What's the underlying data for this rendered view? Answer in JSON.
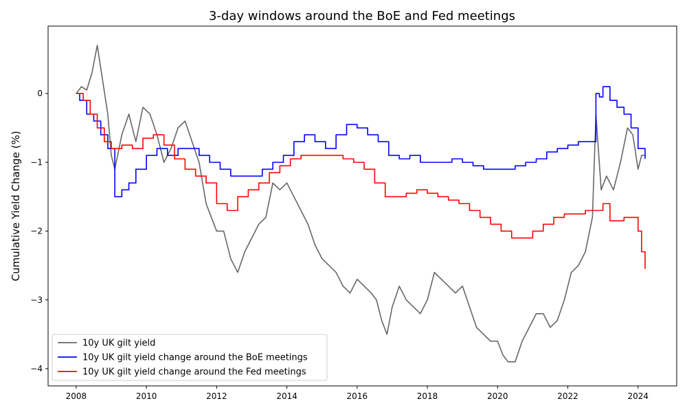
{
  "chart_data": {
    "type": "line",
    "title": "3-day windows around the BoE and Fed meetings",
    "xlabel": "",
    "ylabel": "Cumulative Yield Change (%)",
    "xlim": [
      2007.2,
      2025.1
    ],
    "ylim": [
      -4.25,
      0.98
    ],
    "x_ticks": [
      2008,
      2010,
      2012,
      2014,
      2016,
      2018,
      2020,
      2022,
      2024
    ],
    "y_ticks": [
      0,
      -1,
      -2,
      -3,
      -4
    ],
    "y_tick_labels": [
      "0",
      "−1",
      "−2",
      "−3",
      "−4"
    ],
    "legend_position": "lower-left",
    "grid": false,
    "series": [
      {
        "name": "10y UK gilt yield",
        "color": "#666666",
        "style": "line",
        "x": [
          2008.0,
          2008.15,
          2008.3,
          2008.45,
          2008.6,
          2008.75,
          2008.9,
          2009.0,
          2009.1,
          2009.3,
          2009.5,
          2009.7,
          2009.9,
          2010.1,
          2010.3,
          2010.5,
          2010.7,
          2010.9,
          2011.1,
          2011.3,
          2011.5,
          2011.7,
          2011.85,
          2012.0,
          2012.2,
          2012.4,
          2012.6,
          2012.8,
          2013.0,
          2013.2,
          2013.4,
          2013.6,
          2013.8,
          2014.0,
          2014.2,
          2014.4,
          2014.6,
          2014.8,
          2015.0,
          2015.2,
          2015.4,
          2015.6,
          2015.8,
          2016.0,
          2016.2,
          2016.4,
          2016.55,
          2016.7,
          2016.85,
          2017.0,
          2017.2,
          2017.4,
          2017.6,
          2017.8,
          2018.0,
          2018.2,
          2018.4,
          2018.6,
          2018.8,
          2019.0,
          2019.2,
          2019.4,
          2019.6,
          2019.8,
          2020.0,
          2020.15,
          2020.3,
          2020.5,
          2020.7,
          2020.9,
          2021.1,
          2021.3,
          2021.5,
          2021.7,
          2021.9,
          2022.1,
          2022.3,
          2022.5,
          2022.7,
          2022.8,
          2022.95,
          2023.1,
          2023.3,
          2023.5,
          2023.7,
          2023.85,
          2024.0,
          2024.1,
          2024.2
        ],
        "values": [
          0.0,
          0.1,
          0.05,
          0.3,
          0.7,
          0.2,
          -0.3,
          -0.9,
          -1.1,
          -0.6,
          -0.3,
          -0.7,
          -0.2,
          -0.3,
          -0.6,
          -1.0,
          -0.8,
          -0.5,
          -0.4,
          -0.7,
          -1.0,
          -1.6,
          -1.8,
          -2.0,
          -2.0,
          -2.4,
          -2.6,
          -2.3,
          -2.1,
          -1.9,
          -1.8,
          -1.3,
          -1.4,
          -1.3,
          -1.5,
          -1.7,
          -1.9,
          -2.2,
          -2.4,
          -2.5,
          -2.6,
          -2.8,
          -2.9,
          -2.7,
          -2.8,
          -2.9,
          -3.0,
          -3.3,
          -3.5,
          -3.1,
          -2.8,
          -3.0,
          -3.1,
          -3.2,
          -3.0,
          -2.6,
          -2.7,
          -2.8,
          -2.9,
          -2.8,
          -3.1,
          -3.4,
          -3.5,
          -3.6,
          -3.6,
          -3.8,
          -3.9,
          -3.9,
          -3.6,
          -3.4,
          -3.2,
          -3.2,
          -3.4,
          -3.3,
          -3.0,
          -2.6,
          -2.5,
          -2.3,
          -1.8,
          -0.3,
          -1.4,
          -1.2,
          -1.4,
          -1.0,
          -0.5,
          -0.6,
          -1.1,
          -0.9,
          -0.9
        ]
      },
      {
        "name": "10y UK gilt yield change around the BoE meetings",
        "color": "#0000ff",
        "style": "step",
        "x": [
          2008.0,
          2008.1,
          2008.3,
          2008.5,
          2008.7,
          2008.9,
          2009.1,
          2009.3,
          2009.5,
          2009.7,
          2010.0,
          2010.3,
          2010.6,
          2010.9,
          2011.2,
          2011.5,
          2011.8,
          2012.1,
          2012.4,
          2012.7,
          2013.0,
          2013.3,
          2013.6,
          2013.9,
          2014.2,
          2014.5,
          2014.8,
          2015.1,
          2015.4,
          2015.7,
          2016.0,
          2016.3,
          2016.6,
          2016.9,
          2017.2,
          2017.5,
          2017.8,
          2018.1,
          2018.4,
          2018.7,
          2019.0,
          2019.3,
          2019.6,
          2019.9,
          2020.2,
          2020.5,
          2020.8,
          2021.1,
          2021.4,
          2021.7,
          2022.0,
          2022.3,
          2022.6,
          2022.8,
          2022.9,
          2023.0,
          2023.2,
          2023.4,
          2023.6,
          2023.8,
          2024.0,
          2024.2
        ],
        "values": [
          0.0,
          -0.1,
          -0.3,
          -0.4,
          -0.6,
          -0.8,
          -1.5,
          -1.4,
          -1.3,
          -1.1,
          -0.9,
          -0.8,
          -0.9,
          -0.8,
          -0.8,
          -0.9,
          -1.0,
          -1.1,
          -1.2,
          -1.2,
          -1.2,
          -1.1,
          -1.0,
          -0.9,
          -0.7,
          -0.6,
          -0.7,
          -0.8,
          -0.6,
          -0.45,
          -0.5,
          -0.6,
          -0.7,
          -0.9,
          -0.95,
          -0.9,
          -1.0,
          -1.0,
          -1.0,
          -0.95,
          -1.0,
          -1.05,
          -1.1,
          -1.1,
          -1.1,
          -1.05,
          -1.0,
          -0.95,
          -0.85,
          -0.8,
          -0.75,
          -0.7,
          -0.7,
          0.0,
          -0.05,
          0.1,
          -0.1,
          -0.2,
          -0.3,
          -0.5,
          -0.8,
          -0.95
        ]
      },
      {
        "name": "10y UK gilt yield change around the Fed meetings",
        "color": "#ff0000",
        "style": "step",
        "x": [
          2008.0,
          2008.2,
          2008.4,
          2008.6,
          2008.8,
          2009.0,
          2009.3,
          2009.6,
          2009.9,
          2010.2,
          2010.5,
          2010.8,
          2011.1,
          2011.4,
          2011.7,
          2012.0,
          2012.3,
          2012.6,
          2012.9,
          2013.2,
          2013.5,
          2013.8,
          2014.1,
          2014.4,
          2014.7,
          2015.0,
          2015.3,
          2015.6,
          2015.9,
          2016.2,
          2016.5,
          2016.8,
          2017.1,
          2017.4,
          2017.7,
          2018.0,
          2018.3,
          2018.6,
          2018.9,
          2019.2,
          2019.5,
          2019.8,
          2020.1,
          2020.4,
          2020.7,
          2021.0,
          2021.3,
          2021.6,
          2021.9,
          2022.2,
          2022.5,
          2022.8,
          2023.0,
          2023.2,
          2023.4,
          2023.6,
          2023.8,
          2024.0,
          2024.1,
          2024.2
        ],
        "values": [
          0.0,
          -0.1,
          -0.3,
          -0.5,
          -0.7,
          -0.8,
          -0.75,
          -0.8,
          -0.65,
          -0.6,
          -0.75,
          -0.95,
          -1.1,
          -1.2,
          -1.3,
          -1.6,
          -1.7,
          -1.5,
          -1.4,
          -1.3,
          -1.15,
          -1.05,
          -0.95,
          -0.9,
          -0.9,
          -0.9,
          -0.9,
          -0.95,
          -1.0,
          -1.1,
          -1.3,
          -1.5,
          -1.5,
          -1.45,
          -1.4,
          -1.45,
          -1.5,
          -1.55,
          -1.6,
          -1.7,
          -1.8,
          -1.9,
          -2.0,
          -2.1,
          -2.1,
          -2.0,
          -1.9,
          -1.8,
          -1.75,
          -1.75,
          -1.7,
          -1.7,
          -1.6,
          -1.85,
          -1.85,
          -1.8,
          -1.8,
          -2.0,
          -2.3,
          -2.55
        ]
      }
    ]
  }
}
